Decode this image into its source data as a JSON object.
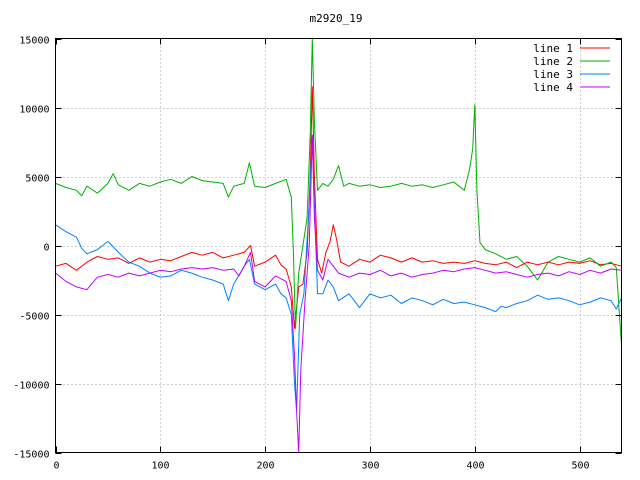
{
  "chart_data": {
    "type": "line",
    "title": "m2920_19",
    "xlabel": "",
    "ylabel": "",
    "xlim": [
      0,
      540
    ],
    "ylim": [
      -15000,
      15000
    ],
    "x_ticks": [
      0,
      100,
      200,
      300,
      400,
      500
    ],
    "y_ticks": [
      -15000,
      -10000,
      -5000,
      0,
      5000,
      10000,
      15000
    ],
    "grid": true,
    "legend_position": "top-right",
    "series": [
      {
        "name": "line 1",
        "color": "#ff0000",
        "points": [
          [
            0,
            -1500
          ],
          [
            10,
            -1300
          ],
          [
            20,
            -1800
          ],
          [
            30,
            -1200
          ],
          [
            40,
            -800
          ],
          [
            50,
            -1000
          ],
          [
            60,
            -900
          ],
          [
            70,
            -1300
          ],
          [
            80,
            -900
          ],
          [
            90,
            -1200
          ],
          [
            100,
            -1000
          ],
          [
            110,
            -1100
          ],
          [
            120,
            -800
          ],
          [
            130,
            -500
          ],
          [
            140,
            -700
          ],
          [
            150,
            -500
          ],
          [
            160,
            -900
          ],
          [
            170,
            -700
          ],
          [
            180,
            -500
          ],
          [
            186,
            0
          ],
          [
            190,
            -1500
          ],
          [
            200,
            -1200
          ],
          [
            210,
            -700
          ],
          [
            215,
            -1400
          ],
          [
            220,
            -1700
          ],
          [
            225,
            -3000
          ],
          [
            228,
            -6000
          ],
          [
            232,
            -3000
          ],
          [
            236,
            -2800
          ],
          [
            240,
            -500
          ],
          [
            243,
            5000
          ],
          [
            245,
            11500
          ],
          [
            247,
            5000
          ],
          [
            250,
            -1000
          ],
          [
            254,
            -2000
          ],
          [
            258,
            -500
          ],
          [
            262,
            300
          ],
          [
            265,
            1500
          ],
          [
            268,
            500
          ],
          [
            272,
            -1200
          ],
          [
            280,
            -1500
          ],
          [
            290,
            -1000
          ],
          [
            300,
            -1200
          ],
          [
            310,
            -700
          ],
          [
            320,
            -900
          ],
          [
            330,
            -1200
          ],
          [
            340,
            -900
          ],
          [
            350,
            -1200
          ],
          [
            360,
            -1100
          ],
          [
            370,
            -1300
          ],
          [
            380,
            -1200
          ],
          [
            390,
            -1300
          ],
          [
            400,
            -1100
          ],
          [
            410,
            -1300
          ],
          [
            420,
            -1400
          ],
          [
            430,
            -1200
          ],
          [
            440,
            -1600
          ],
          [
            450,
            -1200
          ],
          [
            460,
            -1400
          ],
          [
            470,
            -1200
          ],
          [
            480,
            -1400
          ],
          [
            490,
            -1200
          ],
          [
            500,
            -1300
          ],
          [
            510,
            -1100
          ],
          [
            520,
            -1400
          ],
          [
            530,
            -1300
          ],
          [
            540,
            -1500
          ]
        ]
      },
      {
        "name": "line 2",
        "color": "#00b000",
        "points": [
          [
            0,
            4500
          ],
          [
            10,
            4200
          ],
          [
            20,
            4000
          ],
          [
            25,
            3600
          ],
          [
            30,
            4300
          ],
          [
            40,
            3800
          ],
          [
            50,
            4500
          ],
          [
            55,
            5200
          ],
          [
            60,
            4400
          ],
          [
            70,
            4000
          ],
          [
            80,
            4500
          ],
          [
            90,
            4300
          ],
          [
            100,
            4600
          ],
          [
            110,
            4800
          ],
          [
            120,
            4500
          ],
          [
            130,
            5000
          ],
          [
            140,
            4700
          ],
          [
            150,
            4600
          ],
          [
            160,
            4500
          ],
          [
            165,
            3500
          ],
          [
            170,
            4300
          ],
          [
            180,
            4500
          ],
          [
            185,
            6000
          ],
          [
            190,
            4300
          ],
          [
            200,
            4200
          ],
          [
            210,
            4500
          ],
          [
            220,
            4800
          ],
          [
            225,
            3500
          ],
          [
            227,
            -500
          ],
          [
            229,
            -6000
          ],
          [
            232,
            -2000
          ],
          [
            236,
            0
          ],
          [
            240,
            2000
          ],
          [
            243,
            8000
          ],
          [
            245,
            15000
          ],
          [
            247,
            9000
          ],
          [
            250,
            4000
          ],
          [
            255,
            4500
          ],
          [
            260,
            4300
          ],
          [
            265,
            4800
          ],
          [
            270,
            5800
          ],
          [
            275,
            4300
          ],
          [
            280,
            4500
          ],
          [
            290,
            4300
          ],
          [
            300,
            4400
          ],
          [
            310,
            4200
          ],
          [
            320,
            4300
          ],
          [
            330,
            4500
          ],
          [
            340,
            4300
          ],
          [
            350,
            4400
          ],
          [
            360,
            4200
          ],
          [
            370,
            4400
          ],
          [
            380,
            4600
          ],
          [
            390,
            4000
          ],
          [
            395,
            5500
          ],
          [
            398,
            7000
          ],
          [
            400,
            10200
          ],
          [
            402,
            4000
          ],
          [
            405,
            200
          ],
          [
            410,
            -300
          ],
          [
            420,
            -600
          ],
          [
            430,
            -1000
          ],
          [
            440,
            -800
          ],
          [
            450,
            -1500
          ],
          [
            460,
            -2500
          ],
          [
            470,
            -1200
          ],
          [
            480,
            -800
          ],
          [
            490,
            -1000
          ],
          [
            500,
            -1200
          ],
          [
            510,
            -900
          ],
          [
            520,
            -1500
          ],
          [
            530,
            -1200
          ],
          [
            535,
            -1600
          ],
          [
            538,
            -5000
          ],
          [
            540,
            -7200
          ]
        ]
      },
      {
        "name": "line 3",
        "color": "#0080ff",
        "points": [
          [
            0,
            1500
          ],
          [
            10,
            1000
          ],
          [
            20,
            600
          ],
          [
            25,
            -200
          ],
          [
            30,
            -600
          ],
          [
            40,
            -300
          ],
          [
            50,
            300
          ],
          [
            60,
            -500
          ],
          [
            70,
            -1200
          ],
          [
            80,
            -1500
          ],
          [
            90,
            -2000
          ],
          [
            100,
            -2300
          ],
          [
            110,
            -2200
          ],
          [
            120,
            -1800
          ],
          [
            130,
            -2000
          ],
          [
            140,
            -2300
          ],
          [
            150,
            -2500
          ],
          [
            160,
            -2800
          ],
          [
            165,
            -4000
          ],
          [
            170,
            -2800
          ],
          [
            180,
            -1500
          ],
          [
            185,
            -1000
          ],
          [
            190,
            -2800
          ],
          [
            200,
            -3200
          ],
          [
            210,
            -2800
          ],
          [
            215,
            -3500
          ],
          [
            220,
            -3800
          ],
          [
            225,
            -5000
          ],
          [
            228,
            -10000
          ],
          [
            230,
            -12000
          ],
          [
            233,
            -5000
          ],
          [
            237,
            -3500
          ],
          [
            242,
            3000
          ],
          [
            245,
            8000
          ],
          [
            247,
            3000
          ],
          [
            250,
            -3500
          ],
          [
            255,
            -3500
          ],
          [
            260,
            -2500
          ],
          [
            265,
            -3000
          ],
          [
            270,
            -4000
          ],
          [
            280,
            -3500
          ],
          [
            290,
            -4500
          ],
          [
            300,
            -3500
          ],
          [
            310,
            -3800
          ],
          [
            320,
            -3600
          ],
          [
            330,
            -4200
          ],
          [
            340,
            -3800
          ],
          [
            350,
            -4000
          ],
          [
            360,
            -4300
          ],
          [
            370,
            -3900
          ],
          [
            380,
            -4200
          ],
          [
            390,
            -4100
          ],
          [
            400,
            -4300
          ],
          [
            410,
            -4500
          ],
          [
            420,
            -4800
          ],
          [
            425,
            -4400
          ],
          [
            430,
            -4500
          ],
          [
            440,
            -4200
          ],
          [
            450,
            -4000
          ],
          [
            460,
            -3600
          ],
          [
            470,
            -3900
          ],
          [
            480,
            -3800
          ],
          [
            490,
            -4000
          ],
          [
            500,
            -4300
          ],
          [
            510,
            -4100
          ],
          [
            520,
            -3800
          ],
          [
            530,
            -4000
          ],
          [
            535,
            -4600
          ],
          [
            540,
            -3800
          ]
        ]
      },
      {
        "name": "line 4",
        "color": "#c000ff",
        "points": [
          [
            0,
            -2000
          ],
          [
            10,
            -2600
          ],
          [
            20,
            -3000
          ],
          [
            30,
            -3200
          ],
          [
            40,
            -2300
          ],
          [
            50,
            -2100
          ],
          [
            60,
            -2300
          ],
          [
            70,
            -2000
          ],
          [
            80,
            -2200
          ],
          [
            90,
            -2000
          ],
          [
            100,
            -1800
          ],
          [
            110,
            -1900
          ],
          [
            120,
            -1700
          ],
          [
            130,
            -1600
          ],
          [
            140,
            -1700
          ],
          [
            150,
            -1600
          ],
          [
            160,
            -1800
          ],
          [
            170,
            -1700
          ],
          [
            175,
            -2200
          ],
          [
            180,
            -1500
          ],
          [
            186,
            -500
          ],
          [
            190,
            -2600
          ],
          [
            200,
            -3000
          ],
          [
            210,
            -2200
          ],
          [
            220,
            -2600
          ],
          [
            225,
            -4000
          ],
          [
            228,
            -8000
          ],
          [
            230,
            -12000
          ],
          [
            232,
            -15000
          ],
          [
            234,
            -9000
          ],
          [
            238,
            -4000
          ],
          [
            242,
            0
          ],
          [
            245,
            8000
          ],
          [
            247,
            2000
          ],
          [
            250,
            -1800
          ],
          [
            255,
            -2500
          ],
          [
            260,
            -1000
          ],
          [
            265,
            -1500
          ],
          [
            270,
            -2000
          ],
          [
            280,
            -2300
          ],
          [
            290,
            -2000
          ],
          [
            300,
            -2100
          ],
          [
            310,
            -1800
          ],
          [
            320,
            -2200
          ],
          [
            330,
            -2000
          ],
          [
            340,
            -2300
          ],
          [
            350,
            -2100
          ],
          [
            360,
            -2000
          ],
          [
            370,
            -1800
          ],
          [
            380,
            -1900
          ],
          [
            390,
            -1700
          ],
          [
            400,
            -1600
          ],
          [
            410,
            -1800
          ],
          [
            420,
            -2000
          ],
          [
            430,
            -1900
          ],
          [
            440,
            -2100
          ],
          [
            450,
            -2300
          ],
          [
            460,
            -2100
          ],
          [
            470,
            -2000
          ],
          [
            480,
            -2200
          ],
          [
            490,
            -1900
          ],
          [
            500,
            -2100
          ],
          [
            510,
            -1800
          ],
          [
            520,
            -2000
          ],
          [
            530,
            -1700
          ],
          [
            540,
            -1800
          ]
        ]
      }
    ]
  }
}
